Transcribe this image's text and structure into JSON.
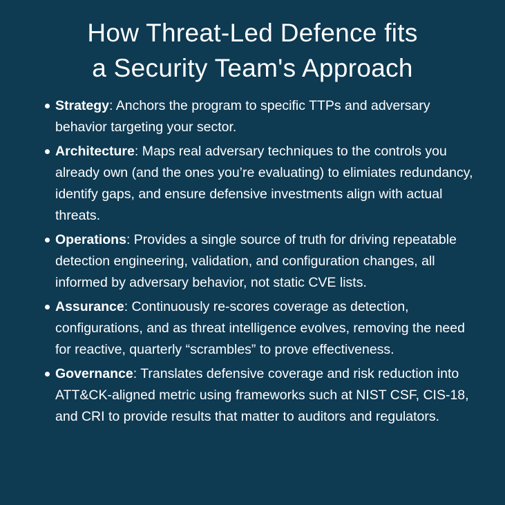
{
  "title": [
    "How Threat-Led Defence fits",
    "a Security Team's Approach"
  ],
  "items": [
    {
      "term": "Strategy",
      "text": ": Anchors the program to specific TTPs and adversary behavior targeting your sector."
    },
    {
      "term": "Architecture",
      "text": ": Maps real adversary techniques to the controls you already own (and the ones you’re evaluating) to elimiates redundancy, identify gaps, and ensure defensive investments align with actual threats."
    },
    {
      "term": "Operations",
      "text": ": Provides a single source of truth for driving repeatable detection engineering, validation, and configuration changes, all informed by adversary behavior, not static CVE lists."
    },
    {
      "term": "Assurance",
      "text": ": Continuously re-scores coverage as detection, configurations, and as threat intelligence evolves, removing the need for reactive, quarterly “scrambles” to prove effectiveness."
    },
    {
      "term": "Governance",
      "text": ": Translates defensive coverage and risk reduction into ATT&CK-aligned metric using frameworks such at NIST CSF, CIS-18, and CRI to provide results that matter to auditors and regulators."
    }
  ]
}
